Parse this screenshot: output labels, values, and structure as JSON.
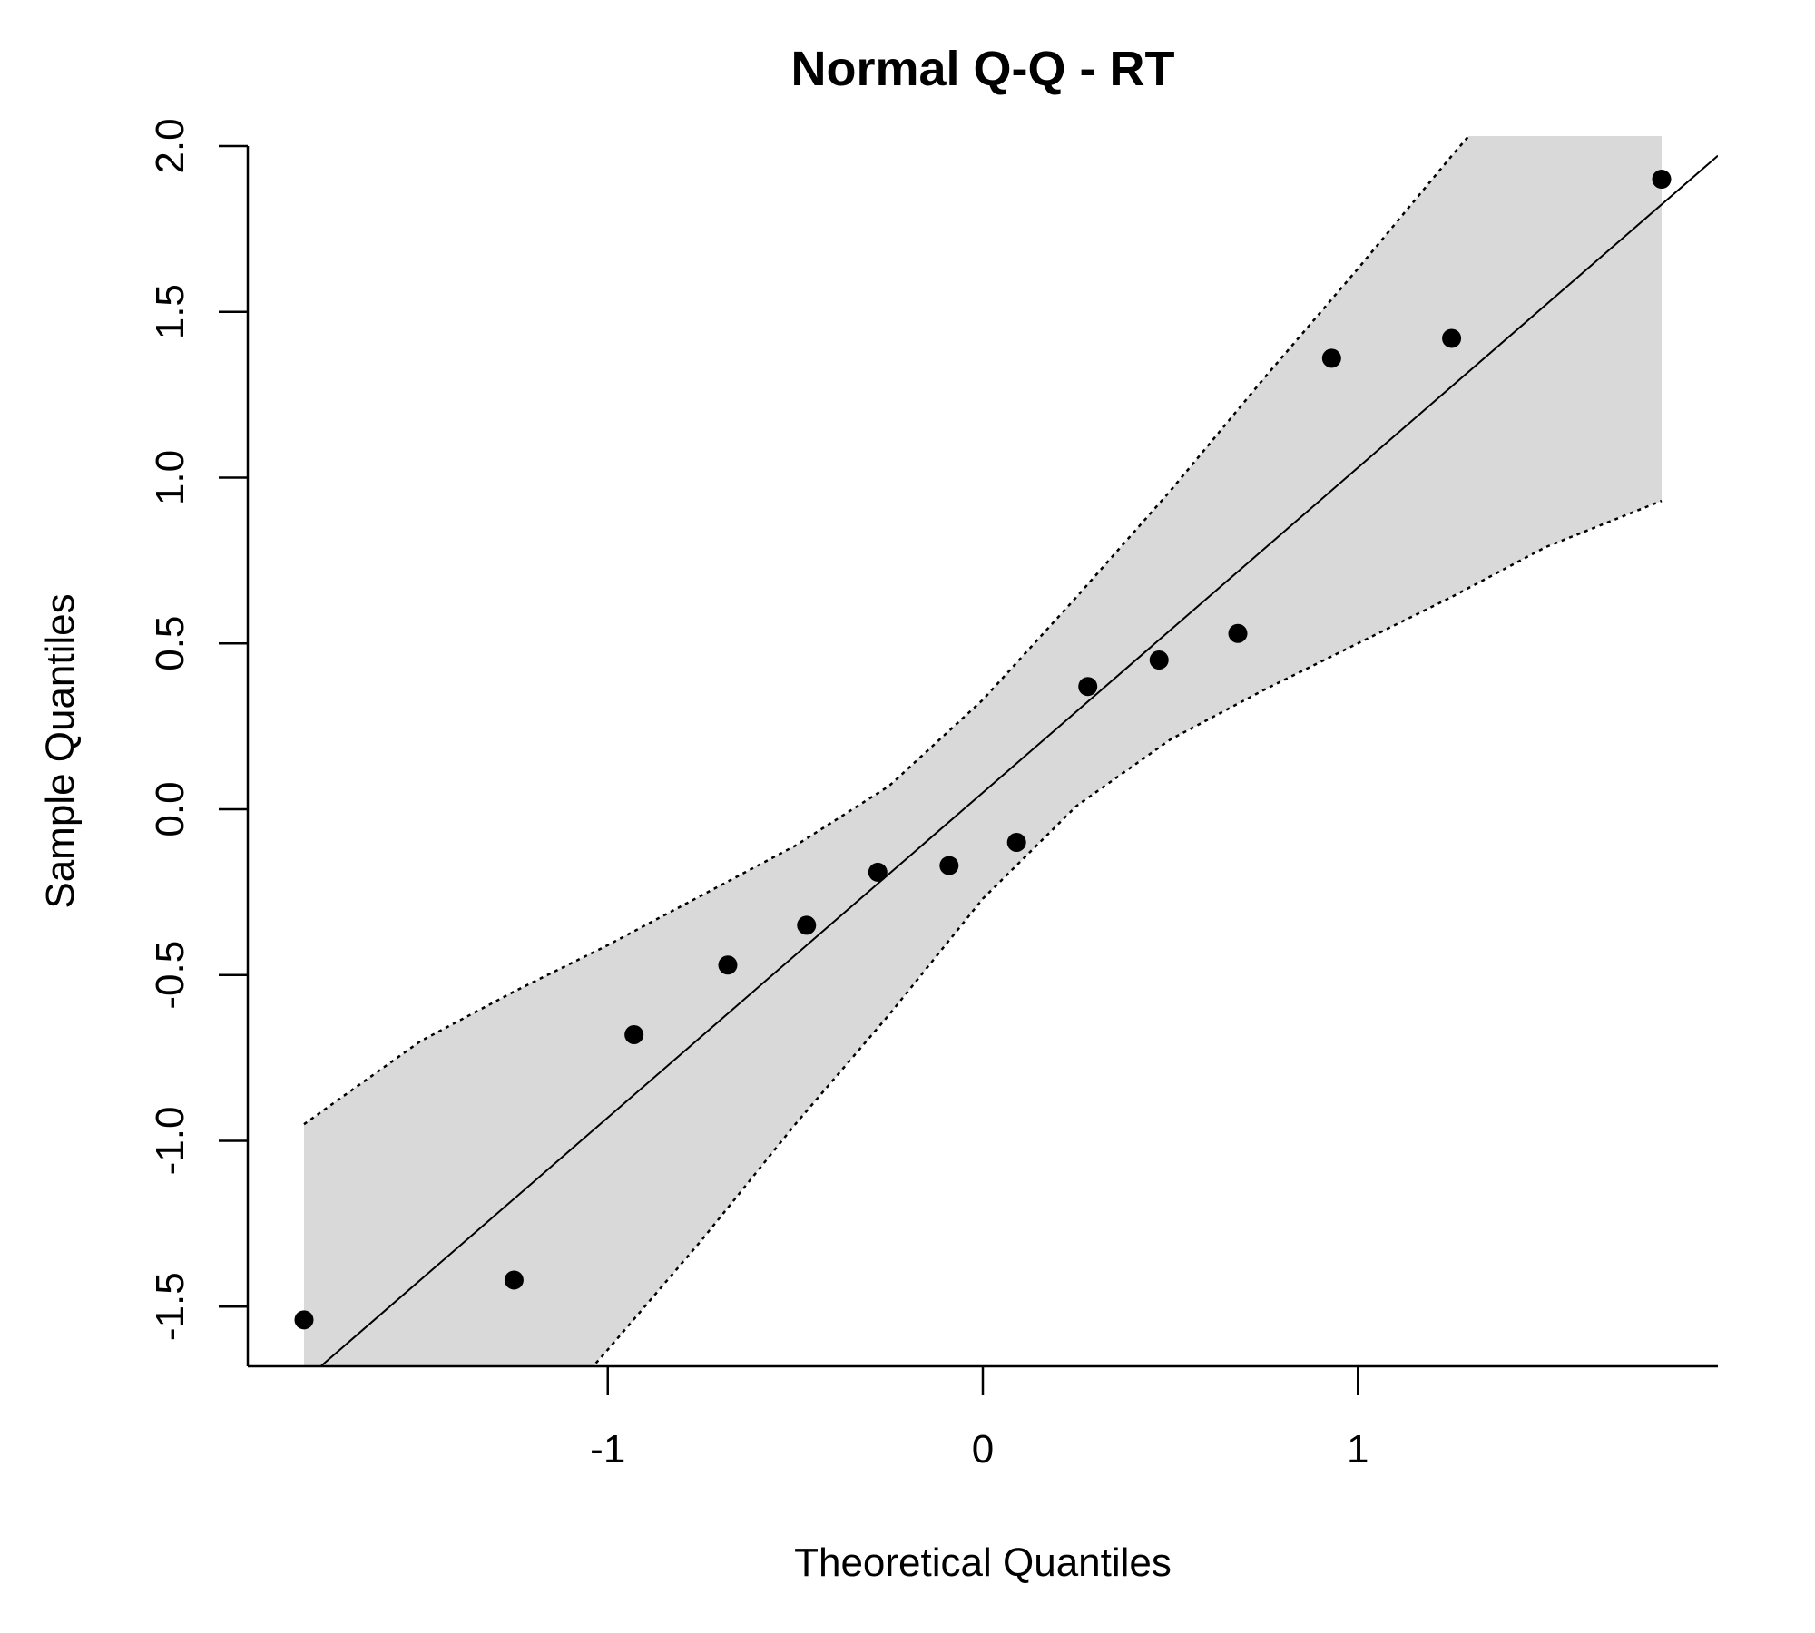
{
  "chart_data": {
    "type": "scatter",
    "title": "Normal Q-Q - RT",
    "xlabel": "Theoretical Quantiles",
    "ylabel": "Sample Quantiles",
    "xlim": [
      -1.96,
      1.96
    ],
    "ylim": [
      -1.68,
      2.03
    ],
    "x_ticks": [
      -1,
      0,
      1
    ],
    "x_tick_labels": [
      "-1",
      "0",
      "1"
    ],
    "y_ticks": [
      -1.5,
      -1.0,
      -0.5,
      0.0,
      0.5,
      1.0,
      1.5,
      2.0
    ],
    "y_tick_labels": [
      "-1.5",
      "-1.0",
      "-0.5",
      "0.0",
      "0.5",
      "1.0",
      "1.5",
      "2.0"
    ],
    "grid": false,
    "points": {
      "x": [
        -1.81,
        -1.25,
        -0.93,
        -0.68,
        -0.47,
        -0.28,
        -0.09,
        0.09,
        0.28,
        0.47,
        0.68,
        0.93,
        1.25,
        1.81
      ],
      "y": [
        -1.54,
        -1.42,
        -0.68,
        -0.47,
        -0.35,
        -0.19,
        -0.17,
        -0.1,
        0.37,
        0.45,
        0.53,
        1.36,
        1.42,
        1.9
      ]
    },
    "reference_line": {
      "intercept": 0.05,
      "slope": 0.98
    },
    "confidence_band": {
      "x": [
        -1.81,
        -1.5,
        -1.25,
        -1.0,
        -0.75,
        -0.5,
        -0.25,
        0.0,
        0.25,
        0.5,
        0.75,
        1.0,
        1.25,
        1.5,
        1.81
      ],
      "upper": [
        -0.95,
        -0.7,
        -0.55,
        -0.41,
        -0.26,
        -0.11,
        0.07,
        0.33,
        0.64,
        0.96,
        1.3,
        1.63,
        1.97,
        2.3,
        2.65
      ],
      "lower": [
        -2.6,
        -2.25,
        -1.95,
        -1.63,
        -1.3,
        -0.95,
        -0.62,
        -0.27,
        0.01,
        0.21,
        0.36,
        0.5,
        0.64,
        0.79,
        0.93
      ],
      "fill_color": "#d9d9d9",
      "line_style": "dotted"
    },
    "point_color": "#000000"
  }
}
